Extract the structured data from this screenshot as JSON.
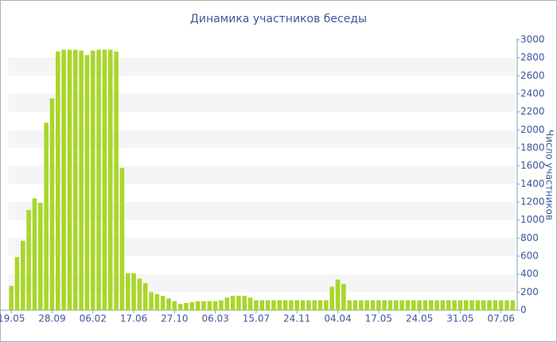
{
  "chart_data": {
    "type": "bar",
    "title": "Динамика участников беседы",
    "y_axis_label": "Число участников",
    "categories": [
      "19.05",
      null,
      null,
      null,
      null,
      null,
      null,
      "28.09",
      null,
      null,
      null,
      null,
      null,
      null,
      "06.02",
      null,
      null,
      null,
      null,
      null,
      null,
      "17.06",
      null,
      null,
      null,
      null,
      null,
      null,
      "27.10",
      null,
      null,
      null,
      null,
      null,
      null,
      "06.03",
      null,
      null,
      null,
      null,
      null,
      null,
      "15.07",
      null,
      null,
      null,
      null,
      null,
      null,
      "24.11",
      null,
      null,
      null,
      null,
      null,
      null,
      "04.04",
      null,
      null,
      null,
      null,
      null,
      null,
      "17.05",
      null,
      null,
      null,
      null,
      null,
      null,
      "24.05",
      null,
      null,
      null,
      null,
      null,
      null,
      "31.05",
      null,
      null,
      null,
      null,
      null,
      null,
      "07.06",
      null,
      null
    ],
    "values": [
      270,
      590,
      770,
      1110,
      1240,
      1190,
      2080,
      2350,
      2870,
      2890,
      2890,
      2890,
      2880,
      2830,
      2880,
      2890,
      2890,
      2890,
      2870,
      1580,
      410,
      410,
      350,
      300,
      200,
      180,
      160,
      130,
      100,
      70,
      80,
      90,
      100,
      100,
      100,
      100,
      110,
      140,
      160,
      160,
      160,
      140,
      110,
      110,
      110,
      110,
      110,
      110,
      110,
      110,
      110,
      110,
      110,
      110,
      110,
      260,
      340,
      290,
      110,
      110,
      110,
      110,
      110,
      110,
      110,
      110,
      110,
      110,
      110,
      110,
      110,
      110,
      110,
      110,
      110,
      110,
      110,
      110,
      110,
      110,
      110,
      110,
      110,
      110,
      110,
      110,
      110
    ],
    "color": "#a9d62c",
    "ylim": [
      0,
      3000
    ],
    "yticks": [
      0,
      200,
      400,
      600,
      800,
      1000,
      1200,
      1400,
      1600,
      1800,
      2000,
      2200,
      2400,
      2600,
      2800,
      3000
    ],
    "grid": true
  }
}
